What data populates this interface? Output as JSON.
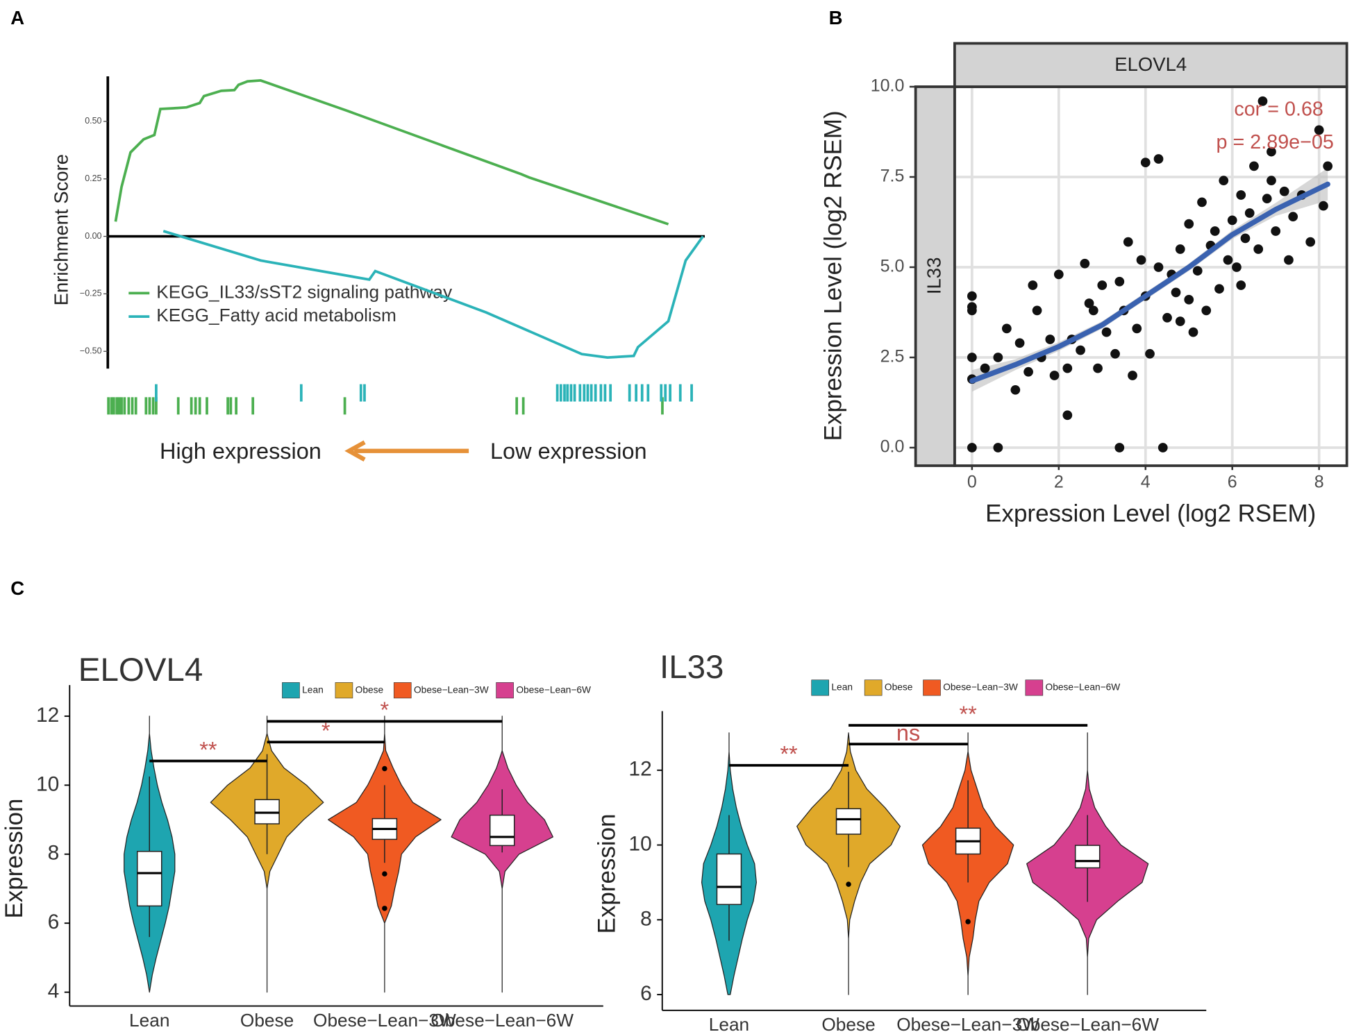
{
  "chart_data": [
    {
      "type": "line",
      "panel": "A",
      "ylabel": "Enrichment Score",
      "xlim": [
        0,
        100
      ],
      "ylim": [
        -0.575,
        0.696
      ],
      "yticks": [
        {
          "value": 0.5,
          "label": "0.50"
        },
        {
          "value": 0.25,
          "label": "0.25"
        },
        {
          "value": 0,
          "label": "0.00"
        },
        {
          "value": -0.25,
          "label": "−0.25"
        },
        {
          "value": -0.5,
          "label": "−0.50"
        }
      ],
      "series": [
        {
          "name": "KEGG_IL33/sST2 signaling pathway",
          "color": "#4caf50",
          "x": [
            1.3,
            2.3,
            3.8,
            6.0,
            7.8,
            8.8,
            11.0,
            13.2,
            15.4,
            16.1,
            19.0,
            21.2,
            21.9,
            23.4,
            25.6,
            40.1,
            69.2,
            70.6,
            93.9
          ],
          "values": [
            0.064,
            0.215,
            0.365,
            0.422,
            0.441,
            0.554,
            0.557,
            0.561,
            0.58,
            0.61,
            0.633,
            0.636,
            0.659,
            0.674,
            0.678,
            0.546,
            0.271,
            0.256,
            0.053
          ],
          "hits": [
            0.1,
            0.6,
            1.0,
            1.5,
            1.9,
            2.3,
            2.8,
            3.5,
            4.1,
            4.7,
            6.4,
            7.0,
            7.6,
            8.1,
            11.8,
            14.0,
            14.7,
            15.4,
            16.6,
            20.1,
            20.6,
            21.5,
            24.3,
            39.7,
            68.5,
            69.6,
            92.9
          ]
        },
        {
          "name": "KEGG_Fatty acid metabolism",
          "color": "#2bb3b8",
          "x": [
            9.3,
            25.6,
            43.8,
            44.8,
            63.4,
            79.4,
            83.7,
            88.1,
            88.8,
            93.9,
            96.8,
            99.7
          ],
          "values": [
            0.023,
            -0.105,
            -0.188,
            -0.151,
            -0.331,
            -0.512,
            -0.527,
            -0.52,
            -0.482,
            -0.369,
            -0.105,
            0.0
          ],
          "hits": [
            8.1,
            32.4,
            42.4,
            43.0,
            75.3,
            75.9,
            76.5,
            77.0,
            77.6,
            78.2,
            79.1,
            79.8,
            80.4,
            81.0,
            81.7,
            82.6,
            83.3,
            84.2,
            87.4,
            88.5,
            89.5,
            90.5,
            92.7,
            93.4,
            94.2,
            95.9,
            97.8
          ]
        }
      ],
      "annotations": [
        "High expression",
        "Low expression"
      ]
    },
    {
      "type": "scatter",
      "panel": "B",
      "facet_top": "ELOVL4",
      "facet_left": "IL33",
      "xlabel": "Expression Level (log2 RSEM)",
      "ylabel": "Expression Level (log2 RSEM)",
      "xlim": [
        -0.4,
        8.64
      ],
      "ylim": [
        -0.5,
        10
      ],
      "xticks": [
        0,
        2,
        4,
        6,
        8
      ],
      "yticks": [
        {
          "value": 10,
          "label": "10.0"
        },
        {
          "value": 7.5,
          "label": "7.5"
        },
        {
          "value": 5,
          "label": "5.0"
        },
        {
          "value": 2.5,
          "label": "2.5"
        },
        {
          "value": 0,
          "label": "0.0"
        }
      ],
      "grid": true,
      "color": "#111111",
      "x": [
        0,
        0,
        0,
        0,
        0,
        0,
        0.6,
        0.3,
        0.6,
        0.8,
        1,
        1.1,
        1.3,
        1.5,
        1.4,
        1.6,
        1.8,
        2.0,
        2.2,
        2.3,
        2.2,
        2.5,
        2.6,
        2.8,
        2.9,
        3.0,
        3.1,
        3.3,
        3.4,
        3.4,
        3.5,
        3.6,
        3.7,
        3.8,
        4.0,
        4.0,
        4.3,
        4.1,
        4.4,
        4.3,
        4.5,
        4.6,
        4.8,
        4.8,
        5.0,
        5.0,
        5.2,
        5.4,
        5.5,
        5.6,
        5.7,
        5.8,
        5.9,
        6.0,
        6.1,
        6.2,
        6.3,
        6.4,
        6.5,
        6.6,
        6.7,
        6.8,
        6.9,
        7.0,
        7.2,
        7.4,
        7.6,
        7.8,
        8.0,
        8.1,
        8.2,
        7.3,
        6.2,
        5.3,
        4.7,
        3.9,
        2.7,
        1.9,
        5.1,
        6.9
      ],
      "values": [
        4.2,
        3.9,
        3.8,
        2.5,
        1.9,
        0,
        0,
        2.2,
        2.5,
        3.3,
        1.6,
        2.9,
        2.1,
        3.8,
        4.5,
        2.5,
        3.0,
        4.8,
        2.2,
        3.0,
        0.9,
        2.7,
        5.1,
        3.8,
        2.2,
        4.5,
        3.2,
        2.6,
        0,
        4.6,
        3.8,
        5.7,
        2.0,
        3.3,
        4.2,
        7.9,
        8.0,
        2.6,
        0,
        5.0,
        3.6,
        4.8,
        5.5,
        3.5,
        4.1,
        6.2,
        4.9,
        3.8,
        5.6,
        6.0,
        4.4,
        7.4,
        5.2,
        6.3,
        5.0,
        7.0,
        5.8,
        6.5,
        7.8,
        5.5,
        9.6,
        6.9,
        8.2,
        6.0,
        7.1,
        6.4,
        7.0,
        5.7,
        8.8,
        6.7,
        7.8,
        5.2,
        4.5,
        6.8,
        4.3,
        5.2,
        4.0,
        2.0,
        3.2,
        7.4
      ],
      "fit": {
        "color": "#3a62b0",
        "x": [
          0,
          1,
          2,
          3,
          4,
          5,
          6,
          7,
          8.2
        ],
        "values": [
          1.85,
          2.3,
          2.8,
          3.4,
          4.2,
          5.0,
          5.9,
          6.6,
          7.3
        ],
        "lower": [
          1.55,
          2.15,
          2.68,
          3.3,
          4.1,
          4.9,
          5.78,
          6.42,
          6.85
        ],
        "upper": [
          2.15,
          2.45,
          2.92,
          3.5,
          4.3,
          5.1,
          6.02,
          6.78,
          7.75
        ]
      },
      "annotations": [
        "cor = 0.68",
        "p = 2.89e−05"
      ]
    },
    {
      "type": "violin",
      "panel": "C",
      "title": "ELOVL4",
      "ylabel": "Expression",
      "ylim": [
        3.6,
        12.9
      ],
      "yticks": [
        4,
        6,
        8,
        10,
        12
      ],
      "categories": [
        "Lean",
        "Obese",
        "Obese−Lean−3W",
        "Obese−Lean−6W"
      ],
      "colors": [
        "#1ea5b0",
        "#e0a92a",
        "#f05a22",
        "#d6408f"
      ],
      "density_y": [
        4,
        4.5,
        5,
        5.5,
        6,
        6.5,
        7,
        7.5,
        8,
        8.5,
        9,
        9.5,
        10,
        10.5,
        11,
        11.5,
        12
      ],
      "groups": [
        {
          "q1": 6.5,
          "median": 7.45,
          "q3": 8.08,
          "whisker_low": 5.6,
          "whisker_high": 10.25,
          "outliers": [],
          "density": [
            0,
            0.05,
            0.12,
            0.2,
            0.28,
            0.35,
            0.4,
            0.45,
            0.45,
            0.4,
            0.32,
            0.22,
            0.14,
            0.08,
            0.03,
            0,
            0
          ]
        },
        {
          "q1": 8.88,
          "median": 9.2,
          "q3": 9.58,
          "whisker_low": 8.0,
          "whisker_high": 10.9,
          "outliers": [],
          "density": [
            0,
            0,
            0,
            0,
            0,
            0,
            0,
            0.05,
            0.2,
            0.35,
            0.65,
            1.0,
            0.7,
            0.3,
            0.08,
            0,
            0
          ]
        },
        {
          "q1": 8.43,
          "median": 8.73,
          "q3": 9.03,
          "whisker_low": 7.75,
          "whisker_high": 10.0,
          "outliers": [
            10.48,
            7.43,
            6.43
          ],
          "density": [
            0,
            0,
            0,
            0,
            0,
            0.12,
            0.18,
            0.25,
            0.3,
            0.55,
            1.0,
            0.5,
            0.3,
            0.15,
            0.02,
            0,
            0
          ]
        },
        {
          "q1": 8.25,
          "median": 8.5,
          "q3": 9.13,
          "whisker_low": 8.05,
          "whisker_high": 9.88,
          "outliers": [],
          "density": [
            0,
            0,
            0,
            0,
            0,
            0,
            0,
            0.05,
            0.3,
            0.9,
            0.75,
            0.45,
            0.25,
            0.1,
            0,
            0,
            0
          ]
        }
      ],
      "brackets": [
        {
          "from": "Lean",
          "to": "Obese",
          "y": 10.7,
          "label": "**"
        },
        {
          "from": "Obese",
          "to": "Obese−Lean−3W",
          "y": 11.25,
          "label": "*"
        },
        {
          "from": "Obese",
          "to": "Obese−Lean−6W",
          "y": 11.85,
          "label": "*"
        }
      ]
    },
    {
      "type": "violin",
      "title": "IL33",
      "ylabel": "Expression",
      "ylim": [
        5.58,
        13.58
      ],
      "yticks": [
        6,
        8,
        10,
        12
      ],
      "categories": [
        "Lean",
        "Obese",
        "Obese−Lean−3W",
        "Obese−Lean−6W"
      ],
      "colors": [
        "#1ea5b0",
        "#e0a92a",
        "#f05a22",
        "#d6408f"
      ],
      "density_y": [
        6,
        6.5,
        7,
        7.5,
        8,
        8.5,
        9,
        9.5,
        10,
        10.5,
        11,
        11.5,
        12,
        12.5,
        13
      ],
      "groups": [
        {
          "q1": 8.41,
          "median": 8.88,
          "q3": 9.76,
          "whisker_low": 7.44,
          "whisker_high": 10.8,
          "outliers": [],
          "density": [
            0.02,
            0.08,
            0.15,
            0.22,
            0.3,
            0.4,
            0.45,
            0.42,
            0.3,
            0.2,
            0.12,
            0.06,
            0.02,
            0,
            0
          ]
        },
        {
          "q1": 10.29,
          "median": 10.69,
          "q3": 10.97,
          "whisker_low": 9.41,
          "whisker_high": 11.96,
          "outliers": [
            8.95
          ],
          "density": [
            0,
            0,
            0,
            0,
            0.02,
            0.1,
            0.2,
            0.35,
            0.7,
            0.85,
            0.6,
            0.3,
            0.12,
            0.03,
            0
          ]
        },
        {
          "q1": 9.76,
          "median": 10.1,
          "q3": 10.45,
          "whisker_low": 9.0,
          "whisker_high": 11.73,
          "outliers": [
            7.95
          ],
          "density": [
            0,
            0,
            0.02,
            0.08,
            0.12,
            0.18,
            0.35,
            0.65,
            0.75,
            0.45,
            0.25,
            0.15,
            0.05,
            0,
            0
          ]
        },
        {
          "q1": 9.39,
          "median": 9.57,
          "q3": 9.99,
          "whisker_low": 8.48,
          "whisker_high": 10.8,
          "outliers": [],
          "density": [
            0,
            0,
            0,
            0.02,
            0.15,
            0.5,
            0.9,
            1.0,
            0.55,
            0.3,
            0.12,
            0.03,
            0,
            0,
            0
          ]
        }
      ],
      "brackets": [
        {
          "from": "Lean",
          "to": "Obese",
          "y": 12.13,
          "label": "**"
        },
        {
          "from": "Obese",
          "to": "Obese−Lean−3W",
          "y": 12.7,
          "label": "ns"
        },
        {
          "from": "Obese",
          "to": "Obese−Lean−6W",
          "y": 13.2,
          "label": "**"
        }
      ]
    }
  ]
}
